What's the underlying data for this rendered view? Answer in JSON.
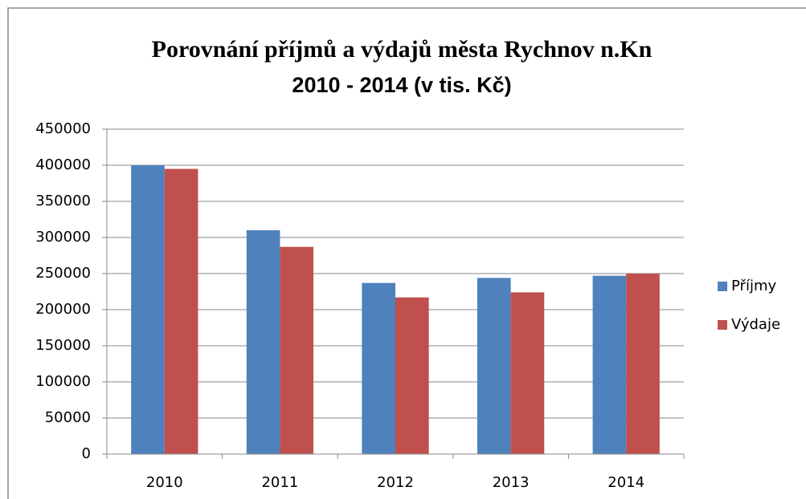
{
  "chart_data": {
    "type": "bar",
    "title": "Porovnání příjmů a výdajů města Rychnov n.Kn",
    "subtitle": "2010 - 2014 (v tis. Kč)",
    "categories": [
      "2010",
      "2011",
      "2012",
      "2013",
      "2014"
    ],
    "series": [
      {
        "name": "Příjmy",
        "color": "#4f81bd",
        "values": [
          400000,
          310000,
          237000,
          244000,
          247000
        ]
      },
      {
        "name": "Výdaje",
        "color": "#c0504d",
        "values": [
          395000,
          287000,
          217000,
          224000,
          250000
        ]
      }
    ],
    "ylim": [
      0,
      450000
    ],
    "yticks": [
      0,
      50000,
      100000,
      150000,
      200000,
      250000,
      300000,
      350000,
      400000,
      450000
    ],
    "grid": true,
    "legend": "right"
  }
}
